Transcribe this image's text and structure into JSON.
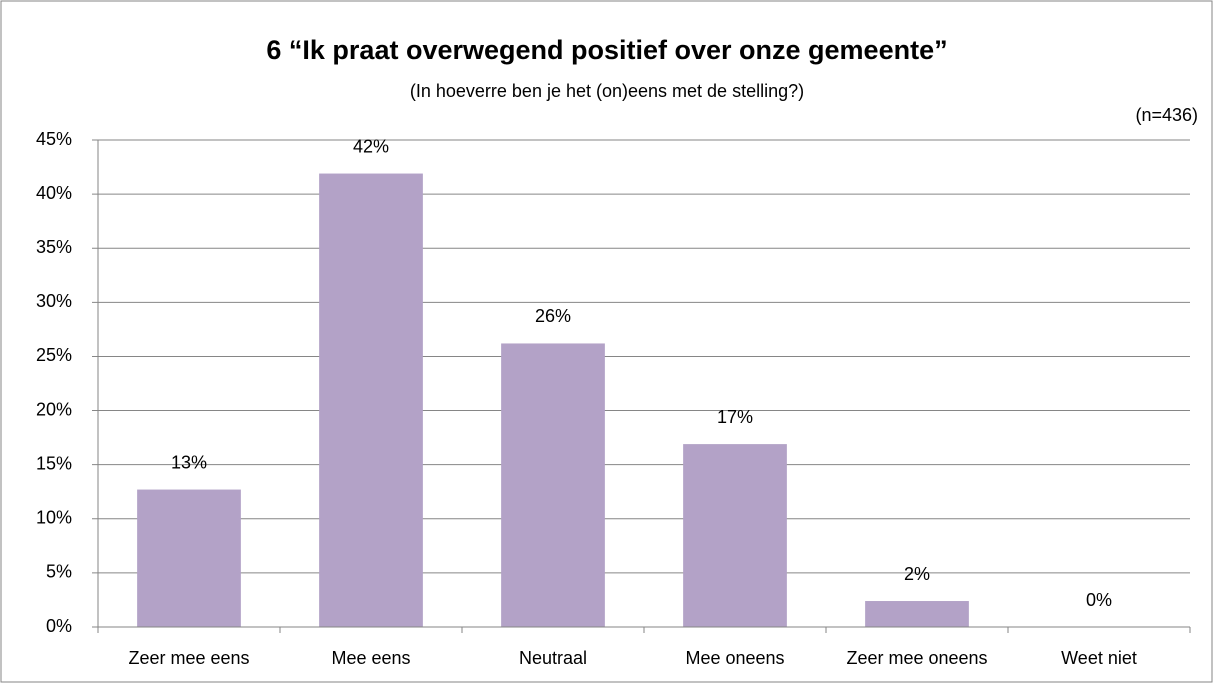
{
  "chart_data": {
    "type": "bar",
    "title": "6 “Ik praat overwegend positief over onze gemeente”",
    "subtitle": "(In hoeverre ben je het (on)eens met de stelling?)",
    "annotation": "(n=436)",
    "categories": [
      "Zeer mee eens",
      "Mee eens",
      "Neutraal",
      "Mee oneens",
      "Zeer mee oneens",
      "Weet niet"
    ],
    "values": [
      12.7,
      41.9,
      26.2,
      16.9,
      2.4,
      0
    ],
    "value_labels": [
      "13%",
      "42%",
      "26%",
      "17%",
      "2%",
      "0%"
    ],
    "color": "#b3a2c7",
    "ylim": [
      0,
      45
    ],
    "yticks": [
      {
        "value": 0,
        "label": "0%"
      },
      {
        "value": 5,
        "label": "5%"
      },
      {
        "value": 10,
        "label": "10%"
      },
      {
        "value": 15,
        "label": "15%"
      },
      {
        "value": 20,
        "label": "20%"
      },
      {
        "value": 25,
        "label": "25%"
      },
      {
        "value": 30,
        "label": "30%"
      },
      {
        "value": 35,
        "label": "35%"
      },
      {
        "value": 40,
        "label": "40%"
      },
      {
        "value": 45,
        "label": "45%"
      }
    ],
    "grid": true
  }
}
